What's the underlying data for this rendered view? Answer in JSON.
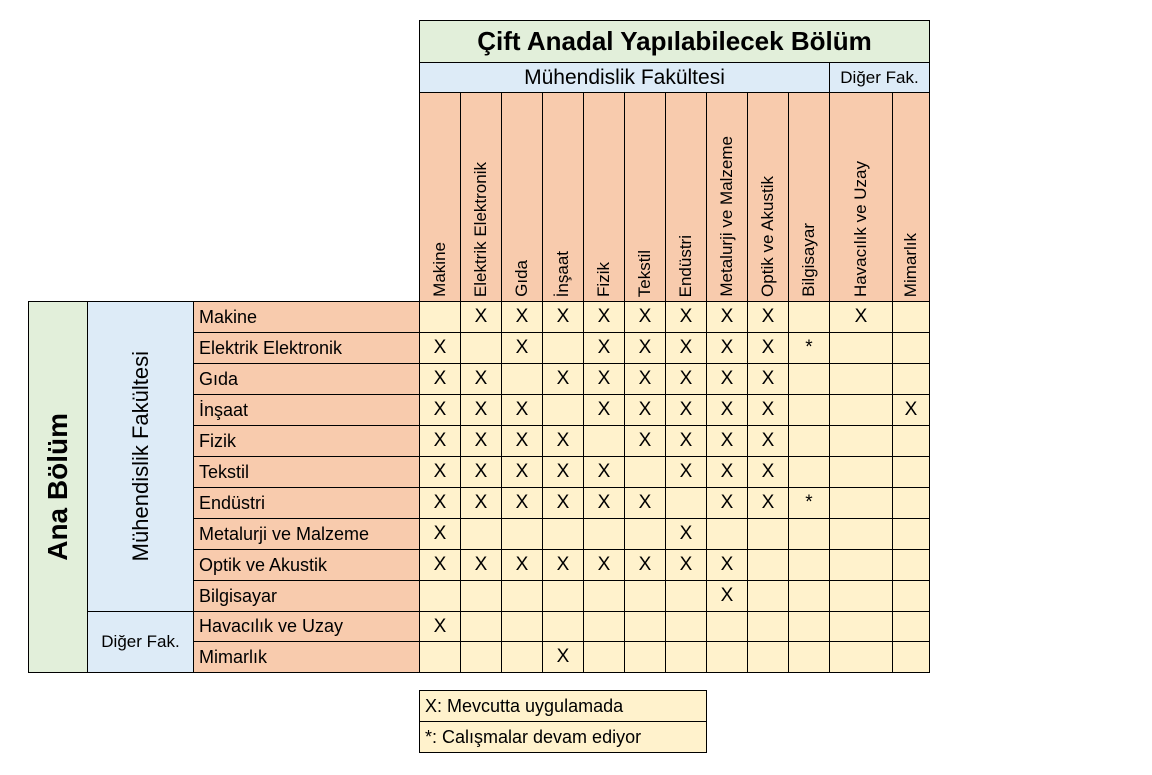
{
  "title": "Çift Anadal Yapılabilecek Bölüm",
  "col_groups": [
    "Mühendislik Fakültesi",
    "Diğer Fak."
  ],
  "columns": [
    "Makine",
    "Elektrik Elektronik",
    "Gıda",
    "İnşaat",
    "Fizik",
    "Tekstil",
    "Endüstri",
    "Metalurji ve Malzeme",
    "Optik ve Akustik",
    "Bilgisayar",
    "Havacılık ve Uzay",
    "Mimarlık"
  ],
  "row_header": "Ana Bölüm",
  "row_groups": [
    "Mühendislik Fakültesi",
    "Diğer Fak."
  ],
  "rows": [
    {
      "label": "Makine",
      "cells": [
        "",
        "X",
        "X",
        "X",
        "X",
        "X",
        "X",
        "X",
        "X",
        "",
        "X",
        ""
      ]
    },
    {
      "label": "Elektrik Elektronik",
      "cells": [
        "X",
        "",
        "X",
        "",
        "X",
        "X",
        "X",
        "X",
        "X",
        "*",
        "",
        ""
      ]
    },
    {
      "label": "Gıda",
      "cells": [
        "X",
        "X",
        "",
        "X",
        "X",
        "X",
        "X",
        "X",
        "X",
        "",
        "",
        ""
      ]
    },
    {
      "label": "İnşaat",
      "cells": [
        "X",
        "X",
        "X",
        "",
        "X",
        "X",
        "X",
        "X",
        "X",
        "",
        "",
        "X"
      ]
    },
    {
      "label": "Fizik",
      "cells": [
        "X",
        "X",
        "X",
        "X",
        "",
        "X",
        "X",
        "X",
        "X",
        "",
        "",
        ""
      ]
    },
    {
      "label": "Tekstil",
      "cells": [
        "X",
        "X",
        "X",
        "X",
        "X",
        "",
        "X",
        "X",
        "X",
        "",
        "",
        ""
      ]
    },
    {
      "label": "Endüstri",
      "cells": [
        "X",
        "X",
        "X",
        "X",
        "X",
        "X",
        "",
        "X",
        "X",
        "*",
        "",
        ""
      ]
    },
    {
      "label": "Metalurji ve Malzeme",
      "cells": [
        "X",
        "",
        "",
        "",
        "",
        "",
        "X",
        "",
        "",
        "",
        "",
        ""
      ]
    },
    {
      "label": "Optik ve Akustik",
      "cells": [
        "X",
        "X",
        "X",
        "X",
        "X",
        "X",
        "X",
        "X",
        "",
        "",
        "",
        ""
      ]
    },
    {
      "label": "Bilgisayar",
      "cells": [
        "",
        "",
        "",
        "",
        "",
        "",
        "",
        "X",
        "",
        "",
        "",
        ""
      ]
    },
    {
      "label": "Havacılık ve Uzay",
      "cells": [
        "X",
        "",
        "",
        "",
        "",
        "",
        "",
        "",
        "",
        "",
        "",
        ""
      ]
    },
    {
      "label": "Mimarlık",
      "cells": [
        "",
        "",
        "",
        "X",
        "",
        "",
        "",
        "",
        "",
        "",
        "",
        ""
      ]
    }
  ],
  "legend": [
    "X: Mevcutta uygulamada",
    "*: Calışmalar devam ediyor"
  ],
  "colors": {
    "title_bg": "#e2efda",
    "group_bg": "#ddebf7",
    "header_bg": "#f8cbad",
    "cell_bg": "#fff2cc"
  }
}
